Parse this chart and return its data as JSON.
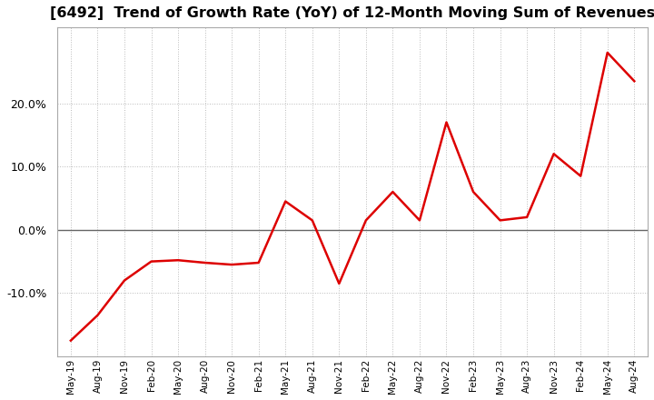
{
  "title": "[6492]  Trend of Growth Rate (YoY) of 12-Month Moving Sum of Revenues",
  "title_fontsize": 11.5,
  "line_color": "#dd0000",
  "background_color": "#ffffff",
  "grid_color": "#bbbbbb",
  "ylim": [
    -20,
    32
  ],
  "yticks": [
    -10.0,
    0.0,
    10.0,
    20.0
  ],
  "x_labels": [
    "May-19",
    "Aug-19",
    "Nov-19",
    "Feb-20",
    "May-20",
    "Aug-20",
    "Nov-20",
    "Feb-21",
    "May-21",
    "Aug-21",
    "Nov-21",
    "Feb-22",
    "May-22",
    "Aug-22",
    "Nov-22",
    "Feb-23",
    "May-23",
    "Aug-23",
    "Nov-23",
    "Feb-24",
    "May-24",
    "Aug-24"
  ],
  "y_values": [
    -17.5,
    -13.5,
    -8.0,
    -5.0,
    -4.8,
    -5.2,
    -5.5,
    -5.2,
    4.5,
    1.5,
    -8.5,
    1.5,
    6.0,
    1.5,
    17.0,
    6.0,
    1.5,
    2.0,
    12.0,
    8.5,
    28.0,
    23.5
  ]
}
